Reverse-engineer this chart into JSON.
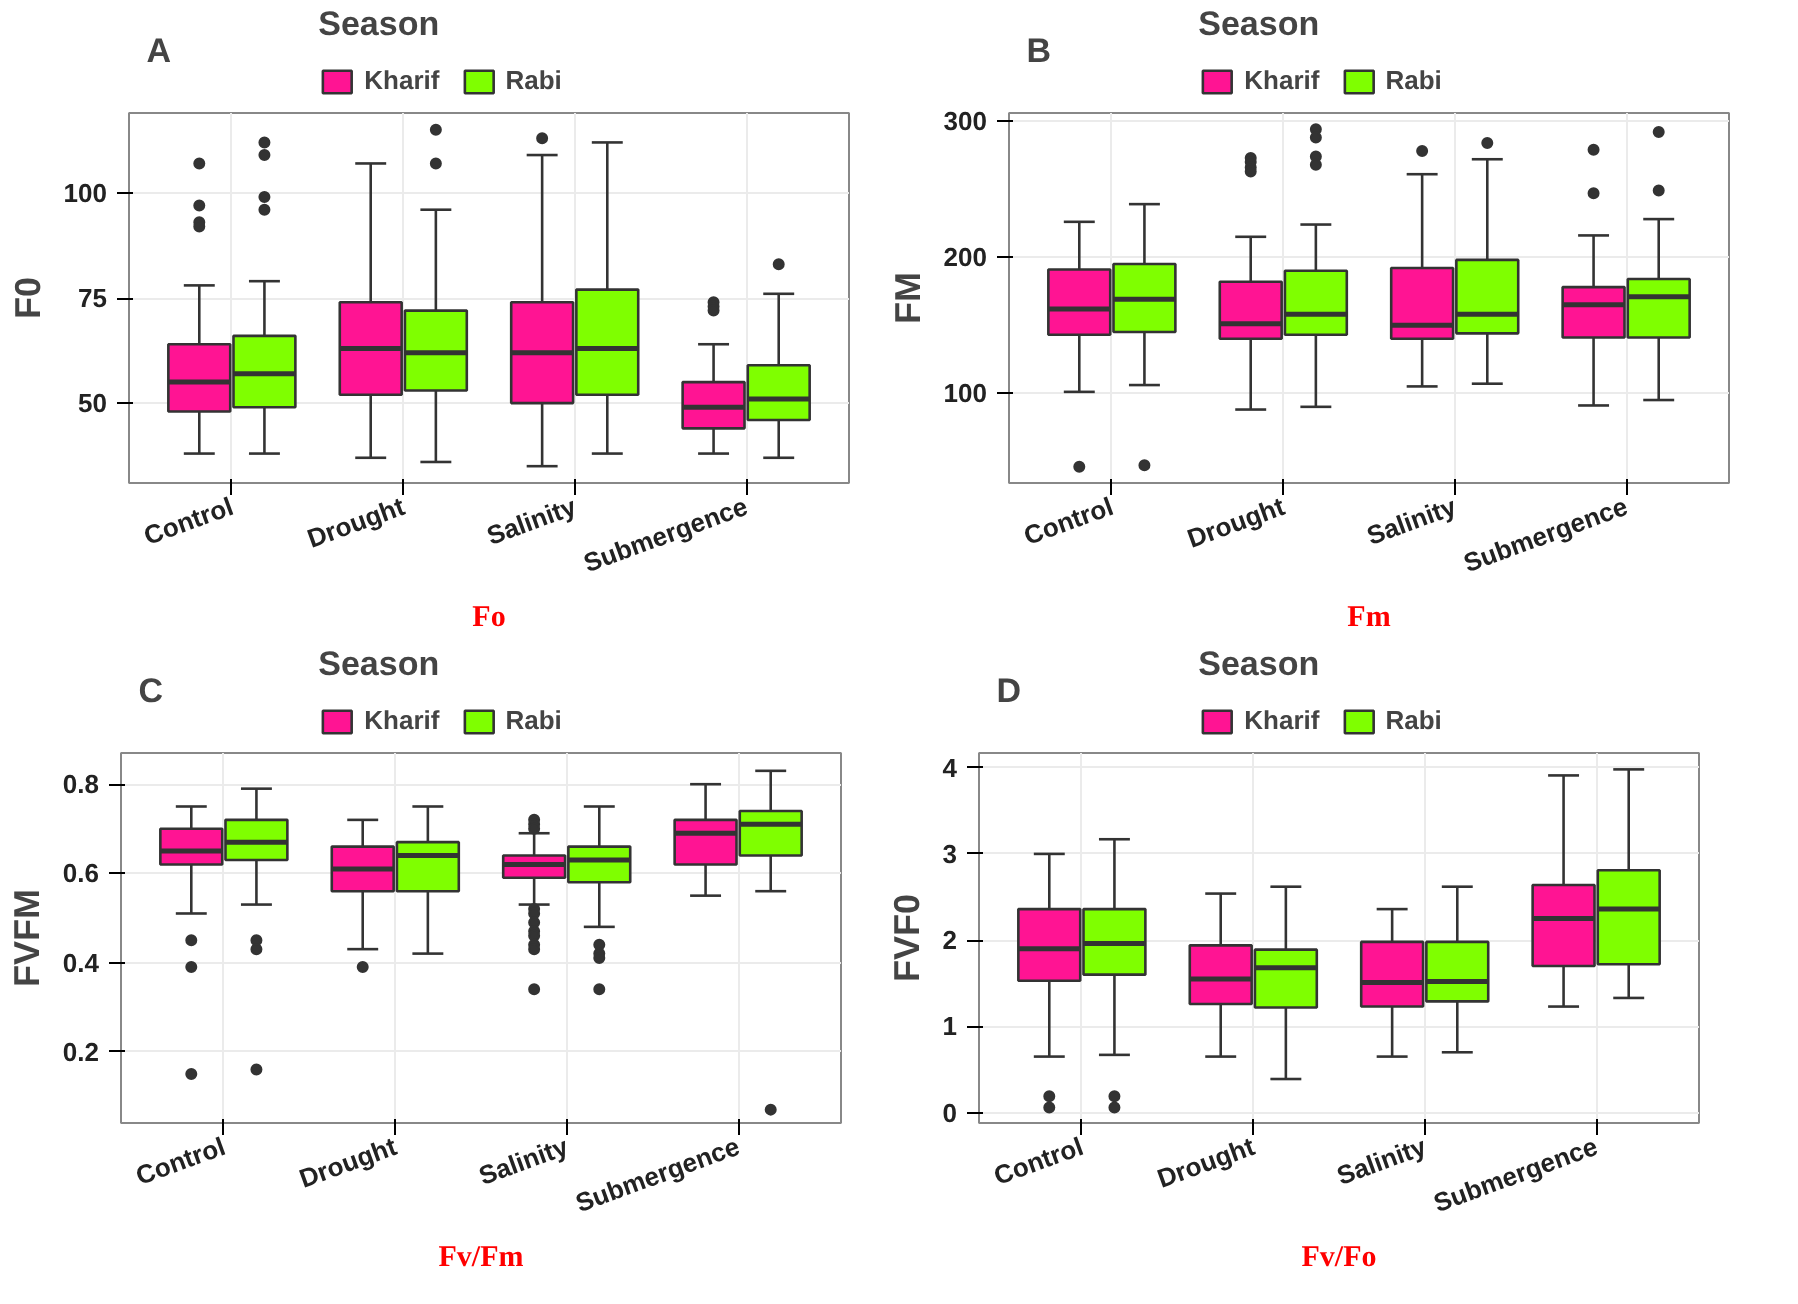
{
  "chart_data": [
    {
      "type": "box",
      "annotations": [
        "A"
      ],
      "legend_title": "Season",
      "legend": "top",
      "grid": true,
      "ylabel": "F0",
      "xlabel": "Fo",
      "categories": [
        "Control",
        "Drought",
        "Salinity",
        "Submergence"
      ],
      "ylim": [
        31,
        119
      ],
      "yticks": [
        50,
        75,
        100
      ],
      "series": [
        {
          "name": "Kharif",
          "color": "#ff1493",
          "boxes": [
            {
              "low": 38,
              "q1": 48,
              "median": 55,
              "q3": 64,
              "high": 78,
              "outliers": [
                107,
                97,
                93,
                92
              ]
            },
            {
              "low": 37,
              "q1": 52,
              "median": 63,
              "q3": 74,
              "high": 107
            },
            {
              "low": 35,
              "q1": 50,
              "median": 62,
              "q3": 74,
              "high": 109,
              "outliers": [
                113
              ]
            },
            {
              "low": 38,
              "q1": 44,
              "median": 49,
              "q3": 55,
              "high": 64,
              "outliers": [
                74,
                73,
                72
              ]
            }
          ]
        },
        {
          "name": "Rabi",
          "color": "#7fff00",
          "boxes": [
            {
              "low": 38,
              "q1": 49,
              "median": 57,
              "q3": 66,
              "high": 79,
              "outliers": [
                112,
                109,
                99,
                96
              ]
            },
            {
              "low": 36,
              "q1": 53,
              "median": 62,
              "q3": 72,
              "high": 96,
              "outliers": [
                115,
                107
              ]
            },
            {
              "low": 38,
              "q1": 52,
              "median": 63,
              "q3": 77,
              "high": 112
            },
            {
              "low": 37,
              "q1": 46,
              "median": 51,
              "q3": 59,
              "high": 76,
              "outliers": [
                83
              ]
            }
          ]
        }
      ]
    },
    {
      "type": "box",
      "annotations": [
        "B"
      ],
      "legend_title": "Season",
      "legend": "top",
      "grid": true,
      "ylabel": "FM",
      "xlabel": "Fm",
      "categories": [
        "Control",
        "Drought",
        "Salinity",
        "Submergence"
      ],
      "ylim": [
        34,
        306
      ],
      "yticks": [
        100,
        200,
        300
      ],
      "series": [
        {
          "name": "Kharif",
          "color": "#ff1493",
          "boxes": [
            {
              "low": 101,
              "q1": 143,
              "median": 162,
              "q3": 191,
              "high": 226,
              "outliers": [
                46
              ]
            },
            {
              "low": 88,
              "q1": 140,
              "median": 151,
              "q3": 182,
              "high": 215,
              "outliers": [
                273,
                270,
                266,
                263
              ]
            },
            {
              "low": 105,
              "q1": 140,
              "median": 150,
              "q3": 192,
              "high": 261,
              "outliers": [
                278
              ]
            },
            {
              "low": 91,
              "q1": 141,
              "median": 165,
              "q3": 178,
              "high": 216,
              "outliers": [
                279,
                247
              ]
            }
          ]
        },
        {
          "name": "Rabi",
          "color": "#7fff00",
          "boxes": [
            {
              "low": 106,
              "q1": 145,
              "median": 169,
              "q3": 195,
              "high": 239,
              "outliers": [
                47
              ]
            },
            {
              "low": 90,
              "q1": 143,
              "median": 158,
              "q3": 190,
              "high": 224,
              "outliers": [
                294,
                288,
                274,
                268
              ]
            },
            {
              "low": 107,
              "q1": 144,
              "median": 158,
              "q3": 198,
              "high": 272,
              "outliers": [
                284
              ]
            },
            {
              "low": 95,
              "q1": 141,
              "median": 171,
              "q3": 184,
              "high": 228,
              "outliers": [
                292,
                249
              ]
            }
          ]
        }
      ]
    },
    {
      "type": "box",
      "annotations": [
        "C"
      ],
      "legend_title": "Season",
      "legend": "top",
      "grid": true,
      "ylabel": "FVFM",
      "xlabel": "Fv/Fm",
      "categories": [
        "Control",
        "Drought",
        "Salinity",
        "Submergence"
      ],
      "ylim": [
        0.04,
        0.87
      ],
      "yticks": [
        {
          "value": 0.2,
          "label": "0.2"
        },
        {
          "value": 0.4,
          "label": "0.4"
        },
        {
          "value": 0.6,
          "label": "0.6"
        },
        {
          "value": 0.8,
          "label": "0.8"
        }
      ],
      "series": [
        {
          "name": "Kharif",
          "color": "#ff1493",
          "boxes": [
            {
              "low": 0.51,
              "q1": 0.62,
              "median": 0.65,
              "q3": 0.7,
              "high": 0.75,
              "outliers": [
                0.45,
                0.39,
                0.15
              ]
            },
            {
              "low": 0.43,
              "q1": 0.56,
              "median": 0.61,
              "q3": 0.66,
              "high": 0.72,
              "outliers": [
                0.39
              ]
            },
            {
              "low": 0.53,
              "q1": 0.59,
              "median": 0.62,
              "q3": 0.64,
              "high": 0.69,
              "outliers": [
                0.72,
                0.71,
                0.7,
                0.52,
                0.51,
                0.49,
                0.47,
                0.46,
                0.44,
                0.43,
                0.34
              ]
            },
            {
              "low": 0.55,
              "q1": 0.62,
              "median": 0.69,
              "q3": 0.72,
              "high": 0.8
            }
          ]
        },
        {
          "name": "Rabi",
          "color": "#7fff00",
          "boxes": [
            {
              "low": 0.53,
              "q1": 0.63,
              "median": 0.67,
              "q3": 0.72,
              "high": 0.79,
              "outliers": [
                0.45,
                0.43,
                0.16
              ]
            },
            {
              "low": 0.42,
              "q1": 0.56,
              "median": 0.64,
              "q3": 0.67,
              "high": 0.75
            },
            {
              "low": 0.48,
              "q1": 0.58,
              "median": 0.63,
              "q3": 0.66,
              "high": 0.75,
              "outliers": [
                0.44,
                0.42,
                0.41,
                0.34
              ]
            },
            {
              "low": 0.56,
              "q1": 0.64,
              "median": 0.71,
              "q3": 0.74,
              "high": 0.83,
              "outliers": [
                0.07
              ]
            }
          ]
        }
      ]
    },
    {
      "type": "box",
      "annotations": [
        "D"
      ],
      "legend_title": "Season",
      "legend": "top",
      "grid": true,
      "ylabel": "FVF0",
      "xlabel": "Fv/Fo",
      "categories": [
        "Control",
        "Drought",
        "Salinity",
        "Submergence"
      ],
      "ylim": [
        -0.12,
        4.17
      ],
      "yticks": [
        0,
        1,
        2,
        3,
        4
      ],
      "series": [
        {
          "name": "Kharif",
          "color": "#ff1493",
          "boxes": [
            {
              "low": 0.65,
              "q1": 1.53,
              "median": 1.9,
              "q3": 2.36,
              "high": 3.0,
              "outliers": [
                0.19,
                0.06
              ]
            },
            {
              "low": 0.65,
              "q1": 1.26,
              "median": 1.55,
              "q3": 1.94,
              "high": 2.54
            },
            {
              "low": 0.65,
              "q1": 1.23,
              "median": 1.51,
              "q3": 1.98,
              "high": 2.36
            },
            {
              "low": 1.23,
              "q1": 1.7,
              "median": 2.25,
              "q3": 2.64,
              "high": 3.91
            }
          ]
        },
        {
          "name": "Rabi",
          "color": "#7fff00",
          "boxes": [
            {
              "low": 0.67,
              "q1": 1.6,
              "median": 1.96,
              "q3": 2.36,
              "high": 3.17,
              "outliers": [
                0.19,
                0.06
              ]
            },
            {
              "low": 0.39,
              "q1": 1.22,
              "median": 1.68,
              "q3": 1.89,
              "high": 2.62
            },
            {
              "low": 0.7,
              "q1": 1.29,
              "median": 1.52,
              "q3": 1.98,
              "high": 2.62
            },
            {
              "low": 1.33,
              "q1": 1.72,
              "median": 2.36,
              "q3": 2.81,
              "high": 3.98
            }
          ]
        }
      ]
    }
  ]
}
